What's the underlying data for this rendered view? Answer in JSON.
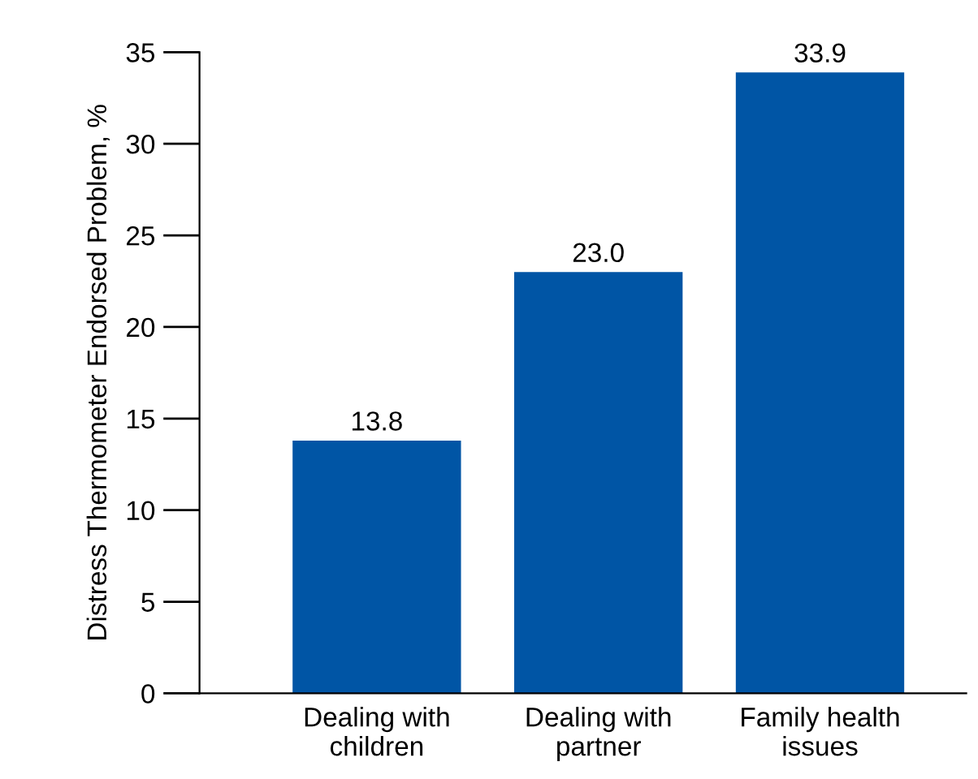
{
  "chart_data": {
    "type": "bar",
    "ylabel": "Distress Thermometer Endorsed Problem, %",
    "categories": [
      "Dealing with\nchildren",
      "Dealing with\npartner",
      "Family health\nissues"
    ],
    "values": [
      13.8,
      23.0,
      33.9
    ],
    "value_labels": [
      "13.8",
      "23.0",
      "33.9"
    ],
    "color": "#0055a5",
    "ylim": [
      0,
      35
    ],
    "yticks": [
      0,
      5,
      10,
      15,
      20,
      25,
      30,
      35
    ],
    "grid": false
  }
}
